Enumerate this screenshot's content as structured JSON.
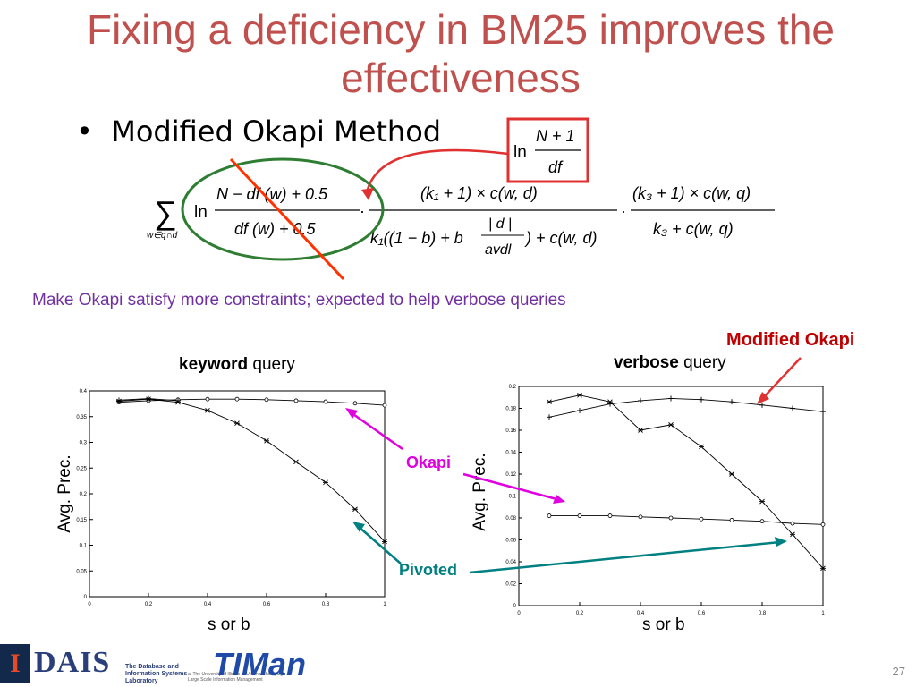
{
  "slide": {
    "title": "Fixing a deficiency in BM25 improves the effectiveness",
    "bullet": "Modified Okapi Method",
    "subtitle": "Make Okapi satisfy more constraints; expected to help verbose queries",
    "page_number": "27",
    "colors": {
      "title": "#c0504d",
      "subtitle": "#7030a0",
      "modified_label": "#c00000",
      "okapi_label": "#e000e0",
      "pivoted_label": "#008080",
      "box": "#e03030",
      "ellipse": "#2e7d32",
      "strike": "#ff3300"
    }
  },
  "formula": {
    "box_ln": "ln",
    "box_num": "N + 1",
    "box_den": "df",
    "sum_symbol": "∑",
    "sum_sub": "w∈q∩d",
    "ln": "ln",
    "idf_num": "N − df (w) + 0.5",
    "idf_den": "df (w) + 0.5",
    "tf_num": "(k₁ + 1) × c(w, d)",
    "tf_den_a": "k₁((1 − b) + b",
    "tf_den_frac_num": "| d |",
    "tf_den_frac_den": "avdl",
    "tf_den_b": ") + c(w, d)",
    "qtf_num": "(k₃ + 1) × c(w, q)",
    "qtf_den": "k₃ + c(w, q)",
    "dot": "·"
  },
  "charts": {
    "left_title_bold": "keyword",
    "left_title_rest": " query",
    "right_title_bold": "verbose",
    "right_title_rest": " query",
    "ylabel": "Avg. Prec.",
    "right_ylabel": "Avg. Prec.",
    "xlabel": "s or b",
    "right_xlabel": "s or b"
  },
  "annotations": {
    "modified_okapi": "Modified Okapi",
    "okapi": "Okapi",
    "pivoted": "Pivoted"
  },
  "logos": {
    "idais": "DAIS",
    "lab_name": "The Database and Information Systems Laboratory",
    "lab_sub": "at The University of Illinois at Urbana-Champaign",
    "lab_sub2": "Large Scale Information Management",
    "timan": "TIMan"
  },
  "chart_data": [
    {
      "type": "line",
      "title": "keyword query",
      "xlabel": "s or b",
      "ylabel": "Avg. Prec.",
      "xlim": [
        0,
        1
      ],
      "ylim": [
        0,
        0.4
      ],
      "xticks": [
        "0",
        "0.2",
        "0.4",
        "0.6",
        "0.8",
        "1"
      ],
      "yticks": [
        "0",
        "0.05",
        "0.1",
        "0.15",
        "0.2",
        "0.25",
        "0.3",
        "0.35",
        "0.4"
      ],
      "series": [
        {
          "name": "Modified Okapi",
          "marker": "o",
          "x": [
            0.1,
            0.2,
            0.3,
            0.4,
            0.5,
            0.6,
            0.7,
            0.8,
            0.9,
            1.0
          ],
          "y": [
            0.378,
            0.381,
            0.383,
            0.384,
            0.384,
            0.383,
            0.381,
            0.379,
            0.376,
            0.372
          ]
        },
        {
          "name": "Okapi",
          "marker": "+",
          "x": [
            0.1,
            0.2,
            0.3
          ],
          "y": [
            0.382,
            0.385,
            0.381
          ]
        },
        {
          "name": "Pivoted",
          "marker": "*",
          "x": [
            0.1,
            0.2,
            0.3,
            0.4,
            0.5,
            0.6,
            0.7,
            0.8,
            0.9,
            1.0
          ],
          "y": [
            0.38,
            0.384,
            0.378,
            0.362,
            0.337,
            0.303,
            0.262,
            0.222,
            0.17,
            0.107
          ]
        }
      ]
    },
    {
      "type": "line",
      "title": "verbose query",
      "xlabel": "s or b",
      "ylabel": "Avg. Prec.",
      "xlim": [
        0,
        1
      ],
      "ylim": [
        0,
        0.2
      ],
      "xticks": [
        "0",
        "0.2",
        "0.4",
        "0.6",
        "0.8",
        "1"
      ],
      "yticks": [
        "0",
        "0.02",
        "0.04",
        "0.06",
        "0.08",
        "0.1",
        "0.12",
        "0.14",
        "0.16",
        "0.18",
        "0.2"
      ],
      "series": [
        {
          "name": "Modified Okapi",
          "marker": "+",
          "x": [
            0.1,
            0.2,
            0.3,
            0.4,
            0.5,
            0.6,
            0.7,
            0.8,
            0.9,
            1.0
          ],
          "y": [
            0.172,
            0.178,
            0.184,
            0.187,
            0.189,
            0.188,
            0.186,
            0.183,
            0.18,
            0.177
          ]
        },
        {
          "name": "Okapi",
          "marker": "o",
          "x": [
            0.1,
            0.2,
            0.3,
            0.4,
            0.5,
            0.6,
            0.7,
            0.8,
            0.9,
            1.0
          ],
          "y": [
            0.082,
            0.082,
            0.082,
            0.081,
            0.08,
            0.079,
            0.078,
            0.077,
            0.075,
            0.074
          ]
        },
        {
          "name": "Pivoted",
          "marker": "*",
          "x": [
            0.1,
            0.2,
            0.3,
            0.4,
            0.5,
            0.6,
            0.7,
            0.8,
            0.9,
            1.0
          ],
          "y": [
            0.186,
            0.192,
            0.186,
            0.16,
            0.165,
            0.145,
            0.12,
            0.095,
            0.065,
            0.034
          ]
        }
      ]
    }
  ]
}
